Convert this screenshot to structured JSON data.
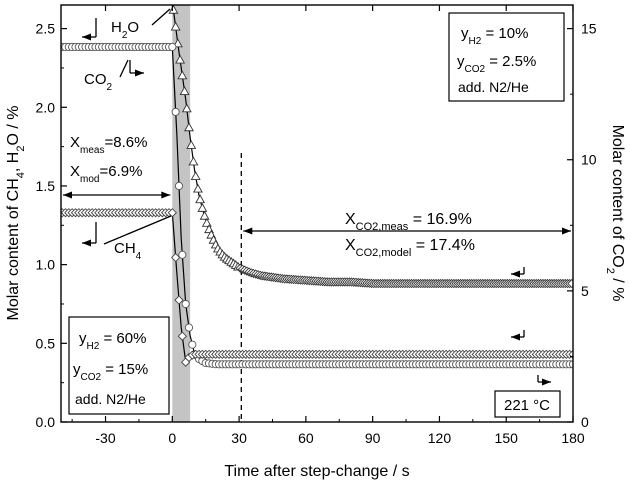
{
  "chart_data": {
    "type": "line",
    "xlabel": "Time after step-change / s",
    "ylabel_left": {
      "a": "Molar content of CH",
      "sub1": "4",
      "b": ", H",
      "sub2": "2",
      "c": "O / %"
    },
    "ylabel_right": {
      "a": "Molar content of CO",
      "sub": "2",
      "b": " / %"
    },
    "xlim": [
      -50,
      180
    ],
    "ylim_left": [
      0,
      2.65
    ],
    "ylim_right": [
      0,
      15.9
    ],
    "x_ticks": [
      -30,
      0,
      30,
      60,
      90,
      120,
      150,
      180
    ],
    "y_left_ticks": [
      0.0,
      0.5,
      1.0,
      1.5,
      2.0,
      2.5
    ],
    "y_right_ticks": [
      0,
      5,
      10,
      15
    ],
    "x_tick_labels": [
      "-30",
      "0",
      "30",
      "60",
      "90",
      "120",
      "150",
      "180"
    ],
    "y_left_tick_labels": [
      "0.0",
      "0.5",
      "1.0",
      "1.5",
      "2.0",
      "2.5"
    ],
    "y_right_tick_labels": [
      "0",
      "5",
      "10",
      "15"
    ],
    "shaded_span": [
      0,
      8
    ],
    "dashed_line_x": 31,
    "series": [
      {
        "name": "H2O",
        "marker": "triangle",
        "axis": "left",
        "x": [
          -50,
          -45,
          -40,
          -35,
          -30,
          -25,
          -20,
          -15,
          -10,
          -5,
          0,
          3,
          6,
          8,
          10,
          12,
          14,
          16,
          18,
          20,
          22,
          24,
          26,
          28,
          30,
          35,
          40,
          50,
          60,
          70,
          80,
          90,
          100,
          120,
          140,
          160,
          180
        ],
        "values": [
          2.67,
          2.67,
          2.67,
          2.67,
          2.67,
          2.67,
          2.67,
          2.67,
          2.67,
          2.67,
          2.67,
          2.35,
          2.05,
          1.81,
          1.6,
          1.44,
          1.33,
          1.24,
          1.17,
          1.11,
          1.07,
          1.04,
          1.02,
          1.0,
          0.98,
          0.95,
          0.93,
          0.91,
          0.9,
          0.89,
          0.89,
          0.88,
          0.88,
          0.88,
          0.88,
          0.88,
          0.88
        ]
      },
      {
        "name": "CO2",
        "marker": "circle",
        "axis": "right",
        "x": [
          -50,
          -45,
          -40,
          -35,
          -30,
          -25,
          -20,
          -15,
          -10,
          -5,
          0,
          2,
          4,
          6,
          8,
          10,
          12,
          15,
          20,
          30,
          40,
          60,
          80,
          100,
          120,
          140,
          160,
          180
        ],
        "values": [
          14.3,
          14.3,
          14.3,
          14.3,
          14.3,
          14.3,
          14.3,
          14.3,
          14.3,
          14.3,
          14.3,
          11.0,
          7.0,
          4.5,
          3.3,
          2.6,
          2.4,
          2.25,
          2.2,
          2.2,
          2.2,
          2.2,
          2.2,
          2.2,
          2.2,
          2.2,
          2.2,
          2.2
        ]
      },
      {
        "name": "CH4",
        "marker": "diamond",
        "axis": "left",
        "x": [
          -50,
          -45,
          -40,
          -35,
          -30,
          -25,
          -20,
          -15,
          -10,
          -5,
          0,
          2,
          4,
          6,
          8,
          10,
          12,
          15,
          20,
          30,
          40,
          60,
          80,
          100,
          120,
          140,
          160,
          180
        ],
        "values": [
          1.33,
          1.33,
          1.33,
          1.33,
          1.33,
          1.33,
          1.33,
          1.33,
          1.33,
          1.33,
          1.33,
          0.95,
          0.6,
          0.38,
          0.42,
          0.43,
          0.43,
          0.43,
          0.43,
          0.43,
          0.43,
          0.43,
          0.43,
          0.43,
          0.43,
          0.43,
          0.43,
          0.43
        ]
      }
    ],
    "annotations": {
      "h2o_label": {
        "a": "H",
        "sub": "2",
        "b": "O"
      },
      "co2_label": {
        "a": "CO",
        "sub": "2"
      },
      "ch4_label": {
        "a": "CH",
        "sub": "4"
      },
      "x_meas": {
        "a": "X",
        "sub": "meas",
        "b": "=8.6%"
      },
      "x_mod": {
        "a": "X",
        "sub": "mod",
        "b": "=6.9%"
      },
      "xco2_meas": {
        "a": "X",
        "sub": "CO2,meas",
        "b": " = 16.9%"
      },
      "xco2_model": {
        "a": "X",
        "sub": "CO2,model",
        "b": " = 17.4%"
      },
      "box_top": {
        "line1": {
          "a": "y",
          "sub": "H2",
          "b": " = 10%"
        },
        "line2": {
          "a": "y",
          "sub": "CO2",
          "b": " = 2.5%"
        },
        "line3": "add. N2/He"
      },
      "box_bottom": {
        "line1": {
          "a": "y",
          "sub": "H2",
          "b": " = 60%"
        },
        "line2": {
          "a": "y",
          "sub": "CO2",
          "b": " = 15%"
        },
        "line3": "add. N2/He"
      },
      "temp": "221 °C"
    }
  }
}
